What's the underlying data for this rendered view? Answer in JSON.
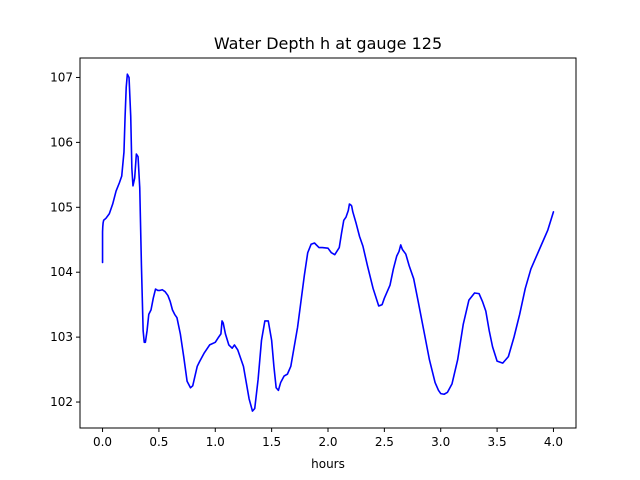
{
  "chart_data": {
    "type": "line",
    "title": "Water Depth h at gauge 125",
    "xlabel": "hours",
    "ylabel": "",
    "xlim": [
      -0.2,
      4.2
    ],
    "ylim": [
      101.6,
      107.3
    ],
    "xticks": [
      0.0,
      0.5,
      1.0,
      1.5,
      2.0,
      2.5,
      3.0,
      3.5,
      4.0
    ],
    "xtick_labels": [
      "0.0",
      "0.5",
      "1.0",
      "1.5",
      "2.0",
      "2.5",
      "3.0",
      "3.5",
      "4.0"
    ],
    "yticks": [
      102,
      103,
      104,
      105,
      106,
      107
    ],
    "ytick_labels": [
      "102",
      "103",
      "104",
      "105",
      "106",
      "107"
    ],
    "grid": false,
    "series": [
      {
        "color": "#0000ff",
        "x": [
          0.0,
          0.0,
          0.002,
          0.005,
          0.01,
          0.03,
          0.06,
          0.09,
          0.12,
          0.15,
          0.17,
          0.19,
          0.2,
          0.21,
          0.22,
          0.235,
          0.25,
          0.26,
          0.27,
          0.285,
          0.3,
          0.315,
          0.33,
          0.345,
          0.36,
          0.37,
          0.38,
          0.395,
          0.41,
          0.43,
          0.45,
          0.47,
          0.49,
          0.51,
          0.53,
          0.555,
          0.58,
          0.6,
          0.62,
          0.64,
          0.66,
          0.69,
          0.72,
          0.75,
          0.78,
          0.8,
          0.82,
          0.84,
          0.86,
          0.9,
          0.95,
          1.0,
          1.03,
          1.05,
          1.06,
          1.07,
          1.09,
          1.12,
          1.15,
          1.17,
          1.2,
          1.25,
          1.3,
          1.33,
          1.35,
          1.38,
          1.41,
          1.44,
          1.47,
          1.5,
          1.52,
          1.54,
          1.56,
          1.58,
          1.61,
          1.64,
          1.67,
          1.7,
          1.73,
          1.76,
          1.79,
          1.82,
          1.85,
          1.88,
          1.92,
          1.95,
          2.0,
          2.03,
          2.06,
          2.1,
          2.12,
          2.14,
          2.16,
          2.18,
          2.19,
          2.2,
          2.21,
          2.22,
          2.25,
          2.28,
          2.31,
          2.35,
          2.4,
          2.45,
          2.48,
          2.5,
          2.55,
          2.58,
          2.61,
          2.63,
          2.645,
          2.66,
          2.69,
          2.72,
          2.76,
          2.8,
          2.85,
          2.9,
          2.95,
          2.98,
          3.0,
          3.03,
          3.06,
          3.1,
          3.15,
          3.2,
          3.25,
          3.3,
          3.34,
          3.37,
          3.4,
          3.43,
          3.46,
          3.5,
          3.55,
          3.6,
          3.65,
          3.7,
          3.75,
          3.8,
          3.85,
          3.9,
          3.95,
          4.0
        ],
        "y": [
          104.15,
          104.62,
          104.7,
          104.76,
          104.8,
          104.83,
          104.9,
          105.05,
          105.25,
          105.38,
          105.48,
          105.85,
          106.4,
          106.85,
          107.05,
          107.0,
          106.4,
          105.6,
          105.33,
          105.45,
          105.82,
          105.78,
          105.3,
          104.1,
          103.1,
          102.92,
          102.92,
          103.1,
          103.35,
          103.42,
          103.6,
          103.74,
          103.72,
          103.72,
          103.73,
          103.7,
          103.64,
          103.55,
          103.42,
          103.35,
          103.3,
          103.05,
          102.7,
          102.32,
          102.22,
          102.25,
          102.4,
          102.55,
          102.62,
          102.75,
          102.88,
          102.92,
          103.0,
          103.05,
          103.25,
          103.22,
          103.05,
          102.88,
          102.83,
          102.88,
          102.8,
          102.55,
          102.05,
          101.86,
          101.9,
          102.35,
          102.95,
          103.25,
          103.25,
          102.95,
          102.55,
          102.22,
          102.18,
          102.3,
          102.4,
          102.43,
          102.55,
          102.85,
          103.15,
          103.55,
          103.95,
          104.3,
          104.43,
          104.45,
          104.38,
          104.38,
          104.37,
          104.3,
          104.27,
          104.38,
          104.6,
          104.8,
          104.85,
          104.95,
          105.05,
          105.04,
          105.02,
          104.93,
          104.75,
          104.55,
          104.4,
          104.1,
          103.75,
          103.48,
          103.5,
          103.6,
          103.8,
          104.05,
          104.25,
          104.32,
          104.42,
          104.35,
          104.28,
          104.1,
          103.9,
          103.55,
          103.1,
          102.65,
          102.3,
          102.18,
          102.13,
          102.12,
          102.15,
          102.28,
          102.65,
          103.2,
          103.57,
          103.68,
          103.67,
          103.55,
          103.4,
          103.1,
          102.85,
          102.63,
          102.6,
          102.7,
          103.0,
          103.35,
          103.75,
          104.05,
          104.25,
          104.45,
          104.65,
          104.93
        ]
      }
    ]
  }
}
